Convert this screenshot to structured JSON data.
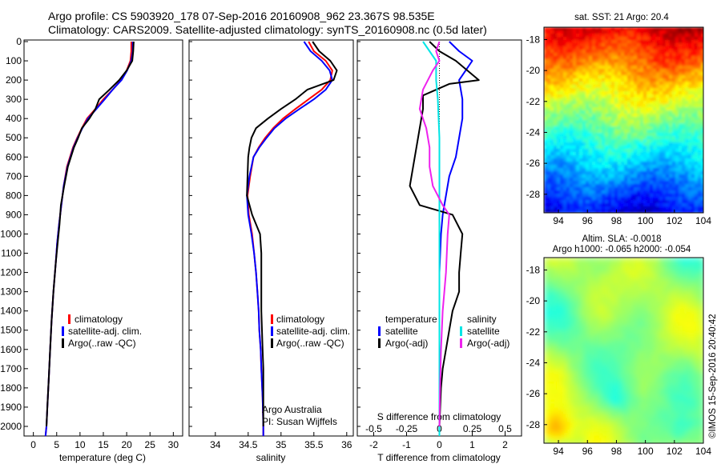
{
  "header": {
    "line1": "Argo profile: CS 5903920_178 07-Sep-2016 20160908_962 23.367S 98.535E",
    "line2": "Climatology: CARS2009. Satellite-adjusted climatology: synTS_20160908.nc (0.5d later)"
  },
  "colors": {
    "climatology": "#ff0000",
    "satellite": "#0000ff",
    "argo": "#000000",
    "salinity_satellite": "#00e5e5",
    "salinity_argo": "#ee22ee"
  },
  "chart_data": [
    {
      "type": "line",
      "xlabel": "temperature (deg C)",
      "xlim": [
        -2,
        32
      ],
      "xticks": [
        "0",
        "5",
        "10",
        "15",
        "20",
        "25",
        "30"
      ],
      "ylim": [
        0,
        2050
      ],
      "yticks": [
        "0",
        "100",
        "200",
        "300",
        "400",
        "500",
        "600",
        "700",
        "800",
        "900",
        "1000",
        "1100",
        "1200",
        "1300",
        "1400",
        "1500",
        "1600",
        "1700",
        "1800",
        "1900",
        "2000"
      ],
      "legend": [
        "climatology",
        "satellite-adj. clim.",
        "Argo(..raw -QC)"
      ],
      "series": [
        {
          "name": "climatology",
          "color": "#ff0000",
          "x": [
            21.0,
            21.0,
            20.8,
            20.0,
            18.8,
            17.0,
            15.0,
            13.3,
            11.5,
            10.4,
            9.4,
            8.5,
            7.2,
            6.5,
            6.0,
            5.5,
            5.1,
            4.8,
            4.3,
            3.9,
            3.6,
            3.3,
            3.0,
            2.8,
            2.6
          ],
          "y": [
            0,
            50,
            100,
            150,
            200,
            250,
            300,
            350,
            400,
            450,
            500,
            550,
            650,
            750,
            850,
            950,
            1050,
            1150,
            1300,
            1450,
            1600,
            1750,
            1900,
            2000,
            2050
          ]
        },
        {
          "name": "satellite-adj. clim.",
          "color": "#0000ff",
          "x": [
            21.3,
            21.3,
            21.0,
            20.1,
            18.9,
            17.0,
            15.3,
            13.5,
            11.7,
            10.5,
            9.5,
            8.6,
            7.3,
            6.5,
            6.0,
            5.5,
            5.1,
            4.8,
            4.3,
            3.9,
            3.6,
            3.3,
            3.0,
            2.8,
            2.6
          ],
          "y": [
            0,
            50,
            100,
            150,
            200,
            250,
            300,
            350,
            400,
            450,
            500,
            550,
            650,
            750,
            850,
            950,
            1050,
            1150,
            1300,
            1450,
            1600,
            1750,
            1900,
            2000,
            2050
          ]
        },
        {
          "name": "Argo(..raw -QC)",
          "color": "#000000",
          "x": [
            21.5,
            21.4,
            21.2,
            20.0,
            18.4,
            16.3,
            14.1,
            13.3,
            12.0,
            10.4,
            9.6,
            8.7,
            7.4,
            6.6,
            5.9,
            5.6,
            5.2,
            4.8,
            4.3,
            3.9,
            3.6,
            3.3,
            3.0,
            2.8
          ],
          "y": [
            0,
            50,
            100,
            150,
            200,
            250,
            300,
            350,
            400,
            450,
            500,
            550,
            650,
            750,
            850,
            950,
            1050,
            1150,
            1300,
            1450,
            1600,
            1750,
            1900,
            2000
          ]
        }
      ]
    },
    {
      "type": "line",
      "xlabel": "salinity",
      "xlim": [
        33.6,
        36.1
      ],
      "xticks": [
        "34",
        "34.5",
        "35",
        "35.5",
        "36"
      ],
      "ylim": [
        0,
        2050
      ],
      "legend": [
        "climatology",
        "satellite-adj. clim.",
        "Argo(..raw -QC)"
      ],
      "annotation": [
        "Argo Australia",
        "PI: Susan Wijffels"
      ],
      "series": [
        {
          "name": "climatology",
          "color": "#ff0000",
          "x": [
            35.42,
            35.5,
            35.68,
            35.78,
            35.75,
            35.62,
            35.42,
            35.22,
            35.03,
            34.88,
            34.76,
            34.66,
            34.58,
            34.53,
            34.49,
            34.51,
            34.56,
            34.59,
            34.62,
            34.64,
            34.66,
            34.67,
            34.69,
            34.7,
            34.72,
            34.73,
            34.73
          ],
          "y": [
            0,
            50,
            100,
            150,
            200,
            250,
            300,
            350,
            400,
            450,
            500,
            550,
            600,
            700,
            800,
            900,
            1000,
            1100,
            1200,
            1300,
            1400,
            1500,
            1600,
            1700,
            1850,
            2000,
            2050
          ]
        },
        {
          "name": "satellite-adj. clim.",
          "color": "#0000ff",
          "x": [
            35.35,
            35.45,
            35.62,
            35.74,
            35.78,
            35.68,
            35.5,
            35.28,
            35.07,
            34.9,
            34.78,
            34.67,
            34.58,
            34.52,
            34.48,
            34.5,
            34.55,
            34.59,
            34.62,
            34.64,
            34.66,
            34.67,
            34.69,
            34.7,
            34.72,
            34.73,
            34.73
          ],
          "y": [
            0,
            50,
            100,
            150,
            200,
            250,
            300,
            350,
            400,
            450,
            500,
            550,
            600,
            700,
            800,
            900,
            1000,
            1100,
            1200,
            1300,
            1400,
            1500,
            1600,
            1700,
            1850,
            2000,
            2050
          ]
        },
        {
          "name": "Argo(..raw -QC)",
          "color": "#000000",
          "x": [
            35.48,
            35.58,
            35.75,
            35.85,
            35.8,
            35.4,
            35.22,
            35.0,
            34.8,
            34.62,
            34.55,
            34.52,
            34.5,
            34.49,
            34.48,
            34.56,
            34.68,
            34.7,
            34.7,
            34.7,
            34.7,
            34.71,
            34.72,
            34.73,
            34.73,
            34.73
          ],
          "y": [
            0,
            50,
            100,
            150,
            200,
            250,
            300,
            350,
            400,
            450,
            500,
            550,
            600,
            700,
            800,
            900,
            1000,
            1100,
            1200,
            1300,
            1400,
            1500,
            1600,
            1700,
            1850,
            2000
          ]
        }
      ]
    },
    {
      "type": "line",
      "xlabel": "T difference from climatology",
      "xlabel_top": "S difference from climatology",
      "xlim": [
        -2.5,
        2.5
      ],
      "xticks": [
        "-2",
        "-1",
        "0",
        "1",
        "2"
      ],
      "xticks_top": [
        "-0.5",
        "-0.25",
        "0",
        "0.25",
        "0.5"
      ],
      "ylim": [
        0,
        2050
      ],
      "legend_left_title": "temperature",
      "legend_right_title": "salinity",
      "legend_left": [
        "satellite",
        "Argo(-adj)"
      ],
      "legend_right": [
        "satellite",
        "Argo(-adj)"
      ],
      "series": [
        {
          "name": "temperature satellite",
          "color": "#0000ff",
          "x": [
            0.3,
            0.6,
            1.0,
            0.8,
            0.6,
            0.7,
            0.7,
            0.6,
            0.5,
            0.3,
            0.2,
            0.1,
            0.05,
            0.0,
            0.0,
            0.0,
            0.0,
            0.0,
            0.0
          ],
          "y": [
            0,
            50,
            100,
            150,
            200,
            300,
            400,
            500,
            600,
            700,
            800,
            900,
            1000,
            1200,
            1400,
            1600,
            1800,
            1950,
            2050
          ]
        },
        {
          "name": "temperature Argo(-adj)",
          "color": "#000000",
          "x": [
            -0.3,
            0.0,
            0.5,
            1.2,
            0.3,
            -0.5,
            -0.5,
            -0.6,
            -0.7,
            -0.8,
            -0.9,
            -0.6,
            0.4,
            0.7,
            0.65,
            0.6,
            0.6,
            0.5,
            0.4,
            0.3,
            0.2,
            0.1,
            0.05,
            0.0
          ],
          "y": [
            0,
            50,
            100,
            200,
            220,
            280,
            350,
            450,
            550,
            650,
            750,
            850,
            900,
            1000,
            1100,
            1200,
            1300,
            1350,
            1400,
            1500,
            1600,
            1700,
            1800,
            2000
          ]
        },
        {
          "name": "salinity satellite",
          "color": "#00e5e5",
          "x": [
            -0.5,
            -0.3,
            -0.1,
            -0.1,
            -0.05,
            0.0,
            0.0,
            0.0,
            0.0,
            0.0,
            0.0,
            0.0,
            0.0
          ],
          "y": [
            0,
            50,
            100,
            200,
            300,
            500,
            700,
            900,
            1200,
            1500,
            1700,
            1900,
            2050
          ]
        },
        {
          "name": "salinity Argo(-adj)",
          "color": "#ee22ee",
          "x": [
            0.0,
            -0.1,
            0.0,
            -0.2,
            -0.5,
            -0.6,
            -0.4,
            -0.3,
            -0.3,
            -0.2,
            0.1,
            0.3,
            0.25,
            0.2,
            0.1,
            0.05,
            0.02,
            0.0
          ],
          "y": [
            0,
            50,
            100,
            150,
            250,
            350,
            450,
            550,
            650,
            750,
            850,
            900,
            1000,
            1200,
            1400,
            1600,
            1800,
            2000
          ]
        }
      ]
    },
    {
      "type": "heatmap",
      "title": "sat. SST: 21  Argo: 20.4",
      "xlim": [
        93,
        104
      ],
      "ylim": [
        -29.2,
        -17.2
      ],
      "xticks": [
        "94",
        "96",
        "98",
        "100",
        "102",
        "104"
      ],
      "yticks": [
        "-18",
        "-20",
        "-22",
        "-24",
        "-26",
        "-28"
      ],
      "colormap": "jet"
    },
    {
      "type": "heatmap",
      "title_line1": "Altim. SLA: -0.0018",
      "title_line2": "Argo h1000: -0.065  h2000: -0.054",
      "xlim": [
        93,
        104
      ],
      "ylim": [
        -29.2,
        -17.2
      ],
      "xticks": [
        "94",
        "96",
        "98",
        "100",
        "102",
        "104"
      ],
      "yticks": [
        "-18",
        "-20",
        "-22",
        "-24",
        "-26",
        "-28"
      ],
      "colormap": "jet"
    }
  ],
  "credit": "©IMOS 15-Sep-2016 20:40:42"
}
